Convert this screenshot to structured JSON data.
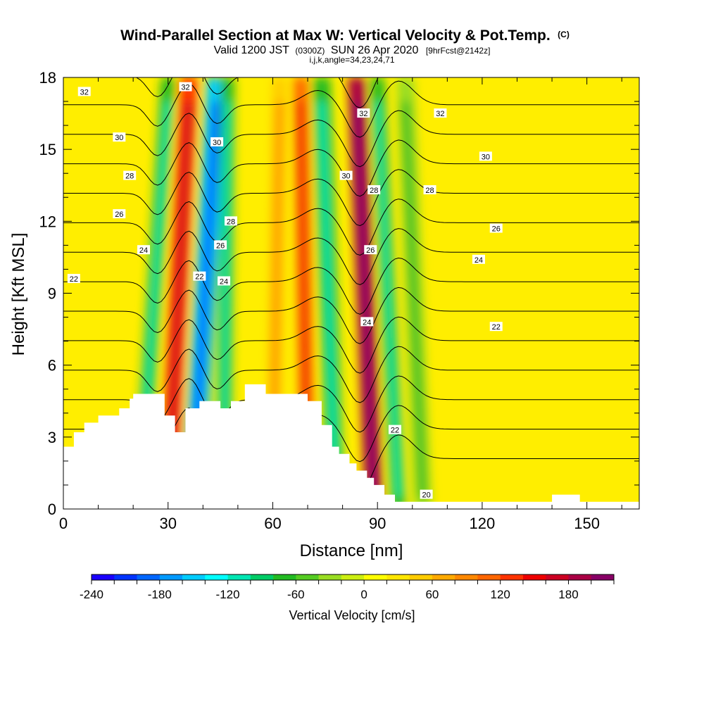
{
  "chart_data": {
    "type": "heatmap",
    "title": "Wind-Parallel Section at Max W: Vertical Velocity & Pot.Temp.",
    "title_unit": "(C)",
    "subtitle": {
      "valid_prefix": "Valid 1200 JST",
      "utc": "(0300Z)",
      "date": "SUN 26 Apr 2020",
      "forecast": "[9hrFcst@2142z]"
    },
    "indices_line": "i,j,k,angle=34,23,24,71",
    "xlabel": "Distance [nm]",
    "ylabel": "Height [Kft MSL]",
    "xlim": [
      0,
      165
    ],
    "ylim": [
      0,
      18
    ],
    "x_ticks": [
      0,
      30,
      60,
      90,
      120,
      150
    ],
    "x_tick_labels": [
      "0",
      "30",
      "60",
      "90",
      "120",
      "150"
    ],
    "y_ticks": [
      0,
      3,
      6,
      9,
      12,
      15,
      18
    ],
    "y_tick_labels": [
      "0",
      "3",
      "6",
      "9",
      "12",
      "15",
      "18"
    ],
    "colorbar": {
      "title": "Vertical Velocity [cm/s]",
      "min": -240,
      "max": 220,
      "step": 20,
      "tick_values": [
        -240,
        -180,
        -120,
        -60,
        0,
        60,
        120,
        180
      ],
      "tick_labels": [
        "-240",
        "-180",
        "-120",
        "-60",
        "0",
        "60",
        "120",
        "180"
      ],
      "colors": [
        "#1a00ff",
        "#0033ff",
        "#0066ff",
        "#0099ff",
        "#00ccff",
        "#00ffff",
        "#00e6b3",
        "#00cc66",
        "#22bb22",
        "#55cc22",
        "#99dd22",
        "#ccee11",
        "#ffff00",
        "#ffe600",
        "#ffcc00",
        "#ffaa00",
        "#ff8800",
        "#ff6600",
        "#ff3300",
        "#ee0000",
        "#cc0022",
        "#aa0044",
        "#880066"
      ]
    },
    "vertical_velocity_bands": [
      {
        "x": 22,
        "x_top": 30,
        "w": -70,
        "width": 4
      },
      {
        "x": 30,
        "x_top": 36,
        "w": 130,
        "width": 5
      },
      {
        "x": 37,
        "x_top": 44,
        "w": -150,
        "width": 6
      },
      {
        "x": 46,
        "x_top": 47,
        "w": -80,
        "width": 4
      },
      {
        "x": 60,
        "x_top": 62,
        "w": 50,
        "width": 4
      },
      {
        "x": 70,
        "x_top": 68,
        "w": 100,
        "width": 4
      },
      {
        "x": 78,
        "x_top": 74,
        "w": -70,
        "width": 5
      },
      {
        "x": 89,
        "x_top": 84,
        "w": 180,
        "width": 5
      },
      {
        "x": 96,
        "x_top": 90,
        "w": -80,
        "width": 4
      },
      {
        "x": 103,
        "x_top": 98,
        "w": -40,
        "width": 5
      }
    ],
    "potential_temperature_isentropes": {
      "units": "C",
      "levels": [
        20,
        21,
        22,
        23,
        24,
        25,
        26,
        27,
        28,
        29,
        30,
        31,
        32,
        33
      ],
      "labels": [
        {
          "text": "32",
          "x": 6,
          "y": 17.4
        },
        {
          "text": "32",
          "x": 35,
          "y": 17.6
        },
        {
          "text": "32",
          "x": 86,
          "y": 16.5
        },
        {
          "text": "32",
          "x": 108,
          "y": 16.5
        },
        {
          "text": "30",
          "x": 16,
          "y": 15.5
        },
        {
          "text": "30",
          "x": 44,
          "y": 15.3
        },
        {
          "text": "30",
          "x": 81,
          "y": 13.9
        },
        {
          "text": "30",
          "x": 121,
          "y": 14.7
        },
        {
          "text": "28",
          "x": 19,
          "y": 13.9
        },
        {
          "text": "28",
          "x": 48,
          "y": 12.0
        },
        {
          "text": "28",
          "x": 89,
          "y": 13.3
        },
        {
          "text": "28",
          "x": 105,
          "y": 13.3
        },
        {
          "text": "26",
          "x": 16,
          "y": 12.3
        },
        {
          "text": "26",
          "x": 45,
          "y": 11.0
        },
        {
          "text": "26",
          "x": 88,
          "y": 10.8
        },
        {
          "text": "26",
          "x": 124,
          "y": 11.7
        },
        {
          "text": "24",
          "x": 23,
          "y": 10.8
        },
        {
          "text": "24",
          "x": 46,
          "y": 9.5
        },
        {
          "text": "24",
          "x": 87,
          "y": 7.8
        },
        {
          "text": "24",
          "x": 119,
          "y": 10.4
        },
        {
          "text": "22",
          "x": 3,
          "y": 9.6
        },
        {
          "text": "22",
          "x": 39,
          "y": 9.7
        },
        {
          "text": "22",
          "x": 95,
          "y": 3.3
        },
        {
          "text": "22",
          "x": 124,
          "y": 7.6
        },
        {
          "text": "20",
          "x": 104,
          "y": 0.6
        }
      ]
    },
    "terrain_profile": [
      [
        0,
        2.6
      ],
      [
        3,
        2.6
      ],
      [
        3,
        3.2
      ],
      [
        6,
        3.2
      ],
      [
        6,
        3.6
      ],
      [
        10,
        3.6
      ],
      [
        10,
        3.9
      ],
      [
        16,
        3.9
      ],
      [
        16,
        4.2
      ],
      [
        19,
        4.2
      ],
      [
        19,
        4.6
      ],
      [
        20,
        4.6
      ],
      [
        20,
        4.8
      ],
      [
        29,
        4.8
      ],
      [
        29,
        3.9
      ],
      [
        32,
        3.9
      ],
      [
        32,
        3.2
      ],
      [
        35,
        3.2
      ],
      [
        35,
        4.2
      ],
      [
        39,
        4.2
      ],
      [
        39,
        4.5
      ],
      [
        45,
        4.5
      ],
      [
        45,
        4.2
      ],
      [
        48,
        4.2
      ],
      [
        48,
        4.5
      ],
      [
        52,
        4.5
      ],
      [
        52,
        5.2
      ],
      [
        58,
        5.2
      ],
      [
        58,
        4.8
      ],
      [
        70,
        4.8
      ],
      [
        70,
        4.5
      ],
      [
        74,
        4.5
      ],
      [
        74,
        3.5
      ],
      [
        77,
        3.5
      ],
      [
        77,
        2.6
      ],
      [
        79,
        2.6
      ],
      [
        79,
        2.3
      ],
      [
        82,
        2.3
      ],
      [
        82,
        1.9
      ],
      [
        84,
        1.9
      ],
      [
        84,
        1.6
      ],
      [
        87,
        1.6
      ],
      [
        87,
        1.3
      ],
      [
        89,
        1.3
      ],
      [
        89,
        1.0
      ],
      [
        92,
        1.0
      ],
      [
        92,
        0.6
      ],
      [
        95,
        0.6
      ],
      [
        95,
        0.3
      ],
      [
        140,
        0.3
      ],
      [
        140,
        0.6
      ],
      [
        148,
        0.6
      ],
      [
        148,
        0.3
      ],
      [
        165,
        0.3
      ]
    ]
  }
}
